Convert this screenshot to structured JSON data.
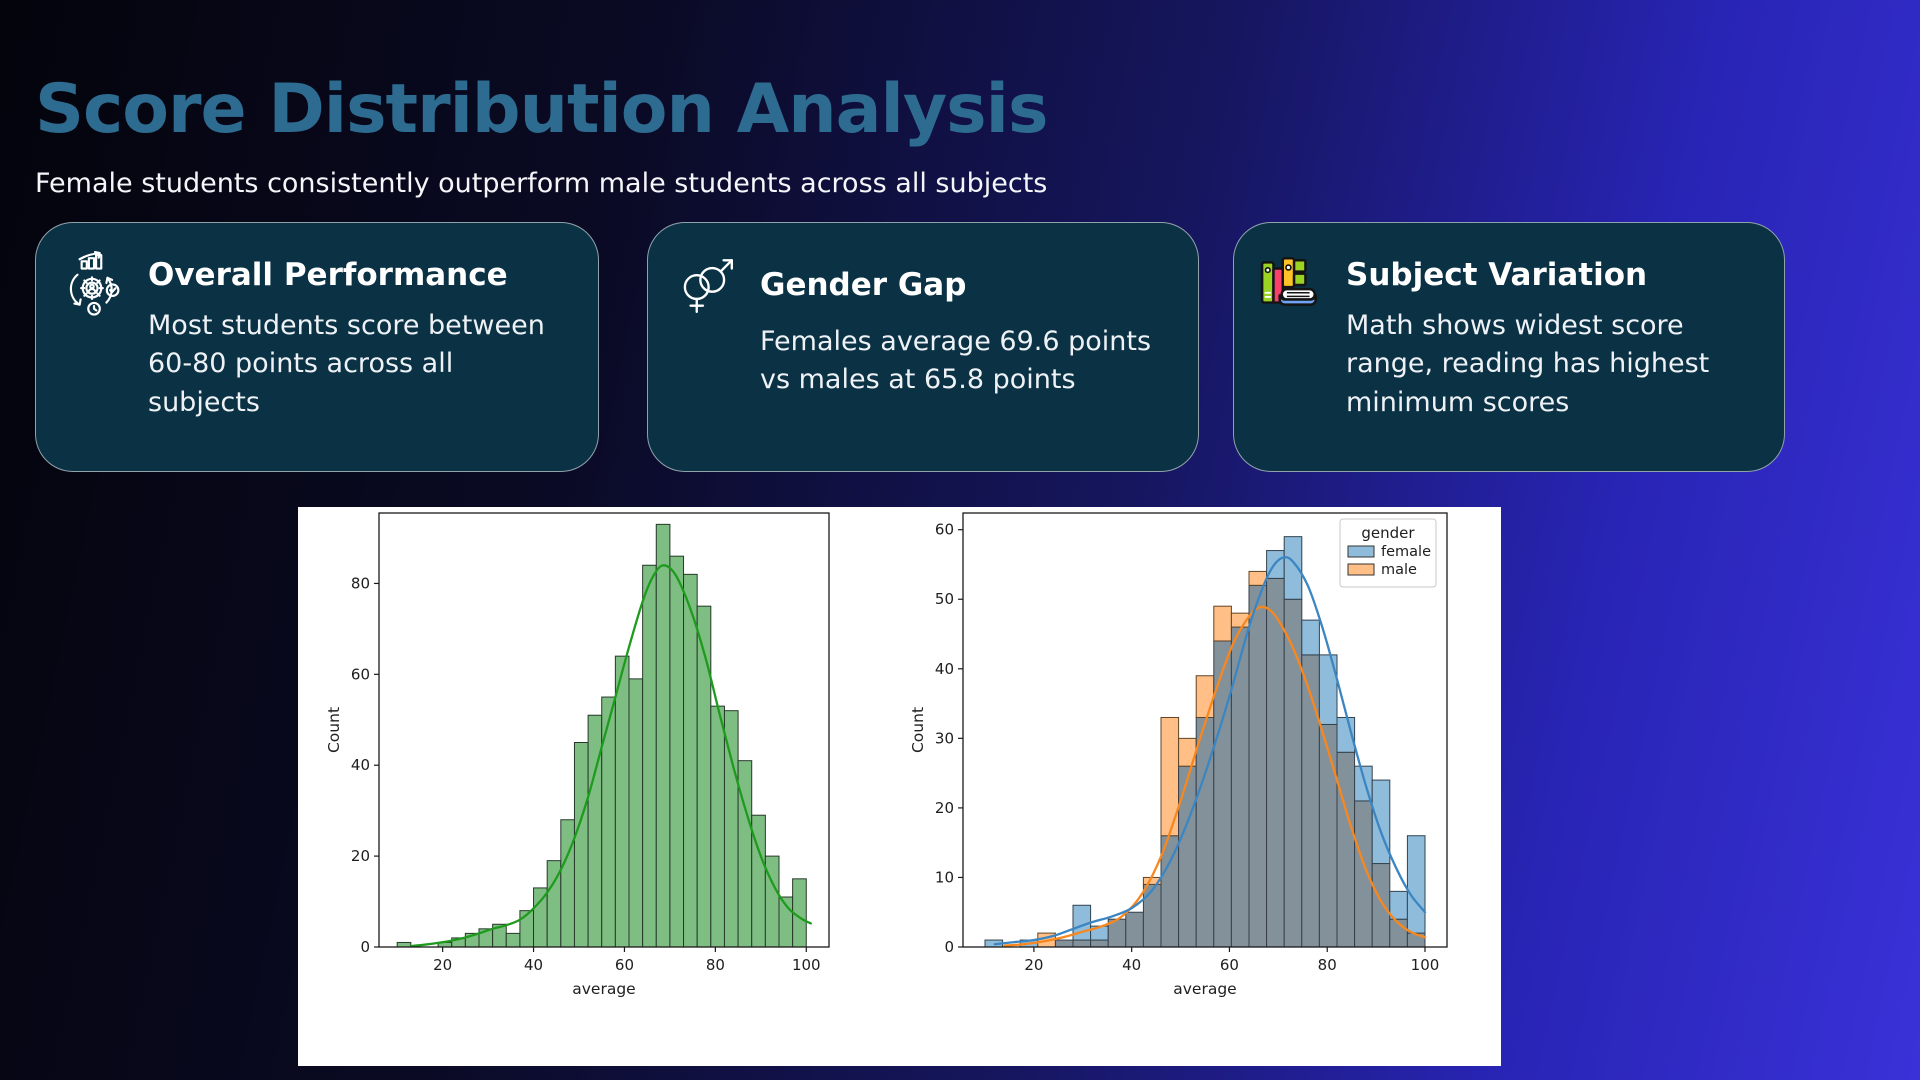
{
  "page": {
    "title": "Score Distribution Analysis",
    "subtitle": "Female students consistently outperform male students across all subjects"
  },
  "cards": [
    {
      "icon": "performance-gear-icon",
      "title": "Overall Performance",
      "body": "Most students score between 60-80 points across all subjects"
    },
    {
      "icon": "gender-symbols-icon",
      "title": "Gender Gap",
      "body": "Females average 69.6 points vs males at 65.8 points"
    },
    {
      "icon": "books-icon",
      "title": "Subject Variation",
      "body": "Math shows widest score range, reading has highest minimum scores"
    }
  ],
  "colors": {
    "background_left": "#04040c",
    "background_right": "#3a31d8",
    "card_background": "#0a3144",
    "card_border": "rgba(255,255,255,0.55)",
    "title_accent": "#2e6b90",
    "text": "#ffffff",
    "figure_background": "#ffffff"
  },
  "chart_data": [
    {
      "type": "bar",
      "subtype": "histogram-with-kde",
      "title": "",
      "xlabel": "average",
      "ylabel": "Count",
      "xticks": [
        20,
        40,
        60,
        80,
        100
      ],
      "yticks": [
        0,
        20,
        40,
        60,
        80
      ],
      "xlim": [
        6,
        105
      ],
      "ylim": [
        0,
        95.5
      ],
      "grid": false,
      "bin_start": 10,
      "bin_width": 3,
      "values": [
        1,
        0,
        0,
        1,
        2,
        3,
        4,
        5,
        3,
        8,
        13,
        19,
        28,
        45,
        51,
        55,
        64,
        59,
        84,
        93,
        86,
        82,
        75,
        53,
        52,
        41,
        29,
        20,
        11,
        15
      ],
      "kde": [
        [
          13,
          0.2
        ],
        [
          16,
          0.5
        ],
        [
          19,
          0.9
        ],
        [
          22,
          1.4
        ],
        [
          25,
          2.1
        ],
        [
          28,
          3
        ],
        [
          31,
          4
        ],
        [
          34,
          4.8
        ],
        [
          37,
          6
        ],
        [
          40,
          8.5
        ],
        [
          43,
          12
        ],
        [
          46,
          17
        ],
        [
          49,
          24
        ],
        [
          52,
          33
        ],
        [
          55,
          44
        ],
        [
          58,
          55
        ],
        [
          61,
          66
        ],
        [
          64,
          76
        ],
        [
          66,
          81
        ],
        [
          68,
          83.8
        ],
        [
          70,
          83.4
        ],
        [
          72,
          80.5
        ],
        [
          75,
          73
        ],
        [
          78,
          63
        ],
        [
          81,
          51
        ],
        [
          84,
          39.5
        ],
        [
          87,
          29
        ],
        [
          90,
          20
        ],
        [
          93,
          13.2
        ],
        [
          96,
          8.6
        ],
        [
          99,
          6.2
        ],
        [
          101,
          5.2
        ]
      ],
      "bar_fill": "#7fbe82",
      "bar_edge": "#26382a",
      "kde_color": "#1e9b1e"
    },
    {
      "type": "bar",
      "subtype": "overlaid-histograms-with-kde",
      "title": "",
      "xlabel": "average",
      "ylabel": "Count",
      "xticks": [
        20,
        40,
        60,
        80,
        100
      ],
      "yticks": [
        0,
        10,
        20,
        30,
        40,
        50,
        60
      ],
      "xlim": [
        5.5,
        104.5
      ],
      "ylim": [
        0,
        62.4
      ],
      "grid": false,
      "bin_start": 10,
      "bin_width": 3.6,
      "legend": {
        "title": "gender",
        "position": "upper right"
      },
      "overlap_fill": "#83919b",
      "series": [
        {
          "name": "female",
          "fill": "#8fbcdb",
          "edge": "#32434f",
          "kde_color": "#3b86c2",
          "values": [
            1,
            0,
            1,
            0,
            1,
            6,
            3,
            4,
            5,
            9,
            16,
            26,
            33,
            44,
            46,
            52,
            57,
            59,
            47,
            42,
            33,
            26,
            24,
            8,
            16
          ],
          "kde": [
            [
              12,
              0.4
            ],
            [
              16,
              0.7
            ],
            [
              20,
              1
            ],
            [
              24,
              1.6
            ],
            [
              28,
              2.6
            ],
            [
              32,
              3.6
            ],
            [
              36,
              4.4
            ],
            [
              40,
              5.6
            ],
            [
              44,
              8
            ],
            [
              48,
              12.5
            ],
            [
              52,
              19
            ],
            [
              56,
              27
            ],
            [
              60,
              36
            ],
            [
              64,
              46
            ],
            [
              67,
              52
            ],
            [
              69,
              54.8
            ],
            [
              71,
              56
            ],
            [
              73,
              55.4
            ],
            [
              76,
              52
            ],
            [
              79,
              46
            ],
            [
              82,
              38.5
            ],
            [
              85,
              30.5
            ],
            [
              88,
              23
            ],
            [
              91,
              16.5
            ],
            [
              94,
              11.5
            ],
            [
              97,
              7.6
            ],
            [
              100,
              5
            ]
          ]
        },
        {
          "name": "male",
          "fill": "#ffbf86",
          "edge": "#5f4526",
          "kde_color": "#f8871e",
          "values": [
            0,
            0,
            0,
            2,
            1,
            1,
            1,
            4,
            5,
            10,
            33,
            30,
            39,
            49,
            48,
            54,
            53,
            50,
            42,
            32,
            28,
            21,
            12,
            4,
            2
          ],
          "kde": [
            [
              14,
              0.2
            ],
            [
              18,
              0.4
            ],
            [
              22,
              0.8
            ],
            [
              26,
              1.4
            ],
            [
              30,
              2.2
            ],
            [
              34,
              3
            ],
            [
              38,
              4.4
            ],
            [
              42,
              7.5
            ],
            [
              46,
              13
            ],
            [
              50,
              21
            ],
            [
              54,
              30
            ],
            [
              58,
              38.5
            ],
            [
              61,
              44
            ],
            [
              64,
              47.5
            ],
            [
              66,
              48.8
            ],
            [
              68,
              48.6
            ],
            [
              70,
              47
            ],
            [
              73,
              43
            ],
            [
              76,
              37.5
            ],
            [
              79,
              31
            ],
            [
              82,
              24
            ],
            [
              85,
              17
            ],
            [
              88,
              11
            ],
            [
              91,
              6.6
            ],
            [
              94,
              3.8
            ],
            [
              97,
              2.2
            ],
            [
              100,
              1.4
            ]
          ]
        }
      ]
    }
  ]
}
